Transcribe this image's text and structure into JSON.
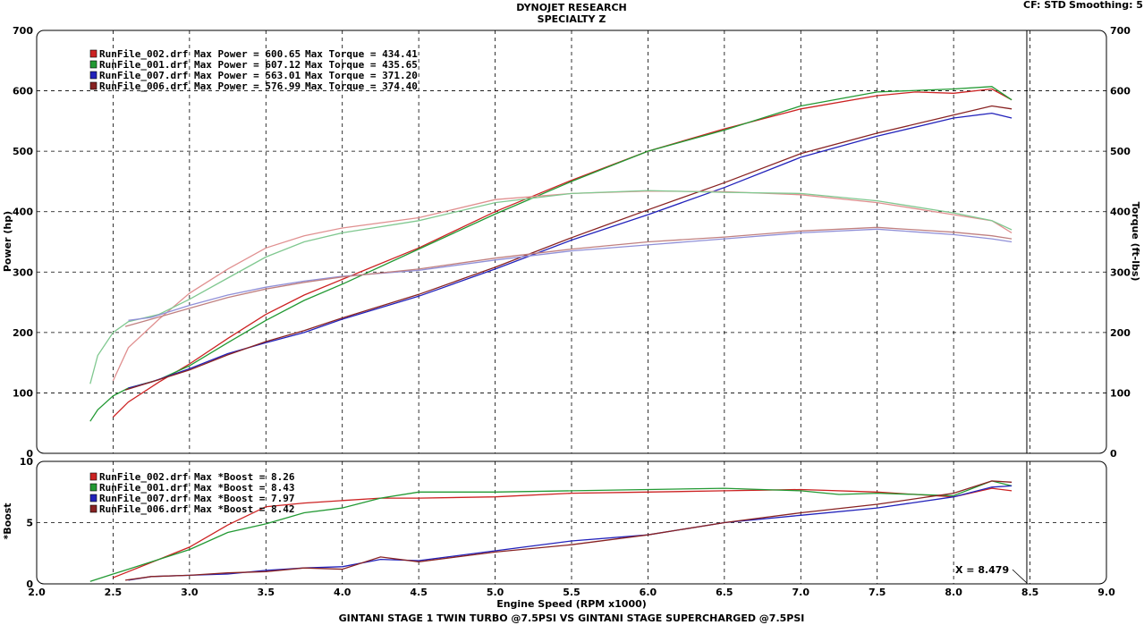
{
  "header": {
    "title_line1": "DYNOJET RESEARCH",
    "title_line2": "SPECIALTY Z",
    "cf_label": "CF: STD",
    "smoothing_label": "Smoothing: 5"
  },
  "footer": {
    "caption": "GINTANI STAGE 1 TWIN TURBO @7.5PSI VS GINTANI STAGE SUPERCHARGED @7.5PSI"
  },
  "chart_data": [
    {
      "type": "line",
      "panel": "top",
      "ylabel": "Power (hp)",
      "y2label": "Torque (ft-lbs)",
      "xlim": [
        2.0,
        9.0
      ],
      "ylim": [
        0,
        700
      ],
      "y2lim": [
        0,
        700
      ],
      "grid": true,
      "yticks": [
        "0",
        "100",
        "200",
        "300",
        "400",
        "500",
        "600",
        "700"
      ],
      "legend": [
        {
          "color_box": "#cc2222",
          "text": "RunFile_002.drf Max Power = 600.65",
          "torque": "Max Torque = 434.41"
        },
        {
          "color_box": "#229933",
          "text": "RunFile_001.drf Max Power = 607.12",
          "torque": "Max Torque = 435.65"
        },
        {
          "color_box": "#2222bb",
          "text": "RunFile_007.drf Max Power = 563.01",
          "torque": "Max Torque = 371.20"
        },
        {
          "color_box": "#882222",
          "text": "RunFile_006.drf Max Power = 576.99",
          "torque": "Max Torque = 374.40"
        }
      ],
      "series": [
        {
          "name": "RunFile_002.drf",
          "measure": "power",
          "color": "#cc2222",
          "x": [
            2.5,
            2.6,
            2.8,
            3.0,
            3.25,
            3.5,
            3.75,
            4.0,
            4.5,
            5.0,
            5.5,
            6.0,
            6.5,
            7.0,
            7.5,
            7.75,
            8.0,
            8.25,
            8.38
          ],
          "y": [
            60,
            85,
            118,
            148,
            190,
            230,
            262,
            288,
            340,
            400,
            452,
            500,
            537,
            570,
            592,
            598,
            596,
            603,
            585
          ]
        },
        {
          "name": "RunFile_001.drf",
          "measure": "power",
          "color": "#229933",
          "x": [
            2.35,
            2.4,
            2.5,
            2.6,
            2.8,
            3.0,
            3.25,
            3.5,
            3.75,
            4.0,
            4.5,
            5.0,
            5.5,
            6.0,
            6.5,
            7.0,
            7.5,
            8.0,
            8.25,
            8.38
          ],
          "y": [
            53,
            72,
            95,
            108,
            122,
            145,
            183,
            220,
            253,
            280,
            338,
            396,
            450,
            500,
            535,
            575,
            598,
            603,
            607,
            585
          ]
        },
        {
          "name": "RunFile_007.drf",
          "measure": "power",
          "color": "#2222bb",
          "x": [
            2.6,
            2.75,
            3.0,
            3.25,
            3.5,
            3.75,
            4.0,
            4.5,
            5.0,
            5.5,
            6.0,
            6.5,
            7.0,
            7.5,
            8.0,
            8.25,
            8.38
          ],
          "y": [
            108,
            118,
            140,
            165,
            183,
            200,
            222,
            260,
            305,
            353,
            395,
            440,
            490,
            525,
            555,
            563,
            555
          ]
        },
        {
          "name": "RunFile_006.drf",
          "measure": "power",
          "color": "#882222",
          "x": [
            2.58,
            2.75,
            3.0,
            3.25,
            3.5,
            3.75,
            4.0,
            4.5,
            5.0,
            5.5,
            6.0,
            6.5,
            7.0,
            7.5,
            8.0,
            8.25,
            8.38
          ],
          "y": [
            105,
            118,
            138,
            163,
            185,
            203,
            224,
            263,
            308,
            357,
            403,
            448,
            496,
            530,
            560,
            575,
            570
          ]
        },
        {
          "name": "RunFile_002.drf",
          "measure": "torque",
          "color": "#e09090",
          "x": [
            2.5,
            2.6,
            2.8,
            3.0,
            3.25,
            3.5,
            3.75,
            4.0,
            4.5,
            5.0,
            5.5,
            6.0,
            6.5,
            7.0,
            7.5,
            8.0,
            8.25,
            8.38
          ],
          "y": [
            120,
            175,
            222,
            265,
            305,
            340,
            360,
            373,
            390,
            420,
            430,
            434,
            433,
            428,
            415,
            395,
            385,
            365
          ]
        },
        {
          "name": "RunFile_001.drf",
          "measure": "torque",
          "color": "#80c890",
          "x": [
            2.35,
            2.4,
            2.5,
            2.6,
            2.8,
            3.0,
            3.25,
            3.5,
            3.75,
            4.0,
            4.5,
            5.0,
            5.5,
            6.0,
            6.5,
            7.0,
            7.5,
            8.0,
            8.25,
            8.38
          ],
          "y": [
            115,
            162,
            200,
            218,
            230,
            255,
            290,
            325,
            350,
            365,
            385,
            415,
            430,
            435,
            432,
            430,
            418,
            398,
            385,
            370
          ]
        },
        {
          "name": "RunFile_007.drf",
          "measure": "torque",
          "color": "#9090d8",
          "x": [
            2.6,
            2.75,
            3.0,
            3.25,
            3.5,
            3.75,
            4.0,
            4.5,
            5.0,
            5.5,
            6.0,
            6.5,
            7.0,
            7.5,
            8.0,
            8.25,
            8.38
          ],
          "y": [
            220,
            225,
            245,
            262,
            275,
            285,
            293,
            303,
            320,
            335,
            345,
            355,
            365,
            371,
            362,
            355,
            350
          ]
        },
        {
          "name": "RunFile_006.drf",
          "measure": "torque",
          "color": "#c08080",
          "x": [
            2.58,
            2.75,
            3.0,
            3.25,
            3.5,
            3.75,
            4.0,
            4.5,
            5.0,
            5.5,
            6.0,
            6.5,
            7.0,
            7.5,
            8.0,
            8.25,
            8.38
          ],
          "y": [
            210,
            222,
            240,
            258,
            272,
            283,
            292,
            305,
            323,
            338,
            350,
            358,
            368,
            374,
            366,
            360,
            355
          ]
        }
      ]
    },
    {
      "type": "line",
      "panel": "bottom",
      "ylabel": "*Boost",
      "xlabel": "Engine Speed (RPM x1000)",
      "xlim": [
        2.0,
        9.0
      ],
      "ylim": [
        0,
        10
      ],
      "grid": true,
      "xticks": [
        "2.0",
        "2.5",
        "3.0",
        "3.5",
        "4.0",
        "4.5",
        "5.0",
        "5.5",
        "6.0",
        "6.5",
        "7.0",
        "7.5",
        "8.0",
        "8.5",
        "9.0"
      ],
      "yticks": [
        "0",
        "5",
        "10"
      ],
      "cursor": {
        "x": 8.479,
        "label": "X = 8.479"
      },
      "legend": [
        {
          "color_box": "#cc2222",
          "text": "RunFile_002.drf Max *Boost = 8.26"
        },
        {
          "color_box": "#229933",
          "text": "RunFile_001.drf Max *Boost = 8.43"
        },
        {
          "color_box": "#2222bb",
          "text": "RunFile_007.drf Max *Boost = 7.97"
        },
        {
          "color_box": "#882222",
          "text": "RunFile_006.drf Max *Boost = 8.42"
        }
      ],
      "series": [
        {
          "name": "RunFile_002.drf",
          "color": "#cc2222",
          "x": [
            2.5,
            2.6,
            2.8,
            3.0,
            3.25,
            3.5,
            3.75,
            4.0,
            4.25,
            4.5,
            5.0,
            5.5,
            6.0,
            6.5,
            7.0,
            7.5,
            8.0,
            8.25,
            8.38
          ],
          "y": [
            0.5,
            1.0,
            2.0,
            3.0,
            4.8,
            6.3,
            6.6,
            6.8,
            7.0,
            7.0,
            7.1,
            7.4,
            7.5,
            7.6,
            7.7,
            7.5,
            7.1,
            7.8,
            7.6
          ]
        },
        {
          "name": "RunFile_001.drf",
          "color": "#229933",
          "x": [
            2.35,
            2.5,
            2.6,
            2.8,
            3.0,
            3.25,
            3.5,
            3.75,
            4.0,
            4.25,
            4.5,
            5.0,
            5.5,
            6.0,
            6.5,
            7.0,
            7.25,
            7.5,
            8.0,
            8.25,
            8.38
          ],
          "y": [
            0.2,
            0.8,
            1.2,
            2.0,
            2.8,
            4.2,
            4.9,
            5.8,
            6.2,
            7.0,
            7.5,
            7.5,
            7.6,
            7.7,
            7.8,
            7.6,
            7.3,
            7.4,
            7.2,
            8.4,
            8.0
          ]
        },
        {
          "name": "RunFile_007.drf",
          "color": "#2222bb",
          "x": [
            2.6,
            2.75,
            3.0,
            3.25,
            3.5,
            3.75,
            4.0,
            4.25,
            4.5,
            5.0,
            5.5,
            6.0,
            6.5,
            7.0,
            7.5,
            8.0,
            8.25,
            8.38
          ],
          "y": [
            0.3,
            0.6,
            0.7,
            0.8,
            1.1,
            1.3,
            1.4,
            2.0,
            1.9,
            2.7,
            3.5,
            4.0,
            5.0,
            5.6,
            6.2,
            7.1,
            7.9,
            8.0
          ]
        },
        {
          "name": "RunFile_006.drf",
          "color": "#882222",
          "x": [
            2.58,
            2.75,
            3.0,
            3.25,
            3.5,
            3.75,
            4.0,
            4.25,
            4.5,
            5.0,
            5.5,
            6.0,
            6.5,
            7.0,
            7.5,
            8.0,
            8.25,
            8.38
          ],
          "y": [
            0.3,
            0.6,
            0.7,
            0.9,
            1.0,
            1.3,
            1.2,
            2.2,
            1.8,
            2.6,
            3.2,
            4.0,
            5.0,
            5.8,
            6.5,
            7.4,
            8.4,
            8.3
          ]
        }
      ]
    }
  ]
}
